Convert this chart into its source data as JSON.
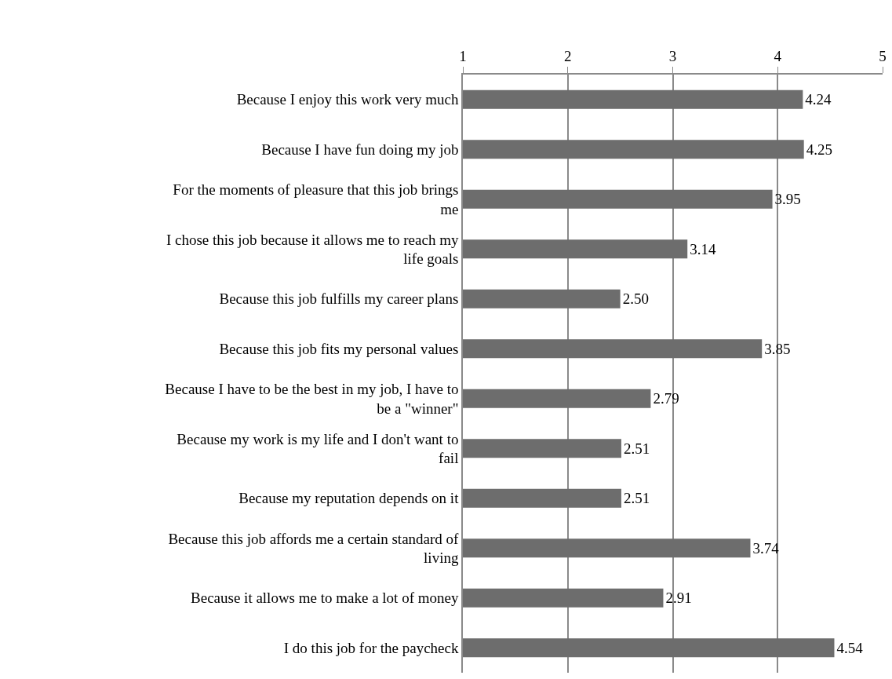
{
  "chart_data": {
    "type": "bar",
    "orientation": "horizontal",
    "categories": [
      "Because I enjoy this work very much",
      "Because I have fun doing my job",
      "For the moments of pleasure that this job brings me",
      "I chose this job because it allows me to reach my life goals",
      "Because this job fulfills my career plans",
      "Because this job fits my personal values",
      "Because I have to be the best in my job, I have to be a \"winner\"",
      "Because my work is my life and I don't want to fail",
      "Because my reputation depends on it",
      "Because this job affords me a certain standard of living",
      "Because it allows me to make a lot of money",
      "I do this job for the paycheck"
    ],
    "values": [
      4.24,
      4.25,
      3.95,
      3.14,
      2.5,
      3.85,
      2.79,
      2.51,
      2.51,
      3.74,
      2.91,
      4.54
    ],
    "value_labels": [
      "4.24",
      "4.25",
      "3.95",
      "3.14",
      "2.50",
      "3.85",
      "2.79",
      "2.51",
      "2.51",
      "3.74",
      "2.91",
      "4.54"
    ],
    "color": "#6d6d6d",
    "xlim": [
      1,
      5
    ],
    "xticks": [
      1,
      2,
      3,
      4,
      5
    ],
    "grid": "x"
  }
}
